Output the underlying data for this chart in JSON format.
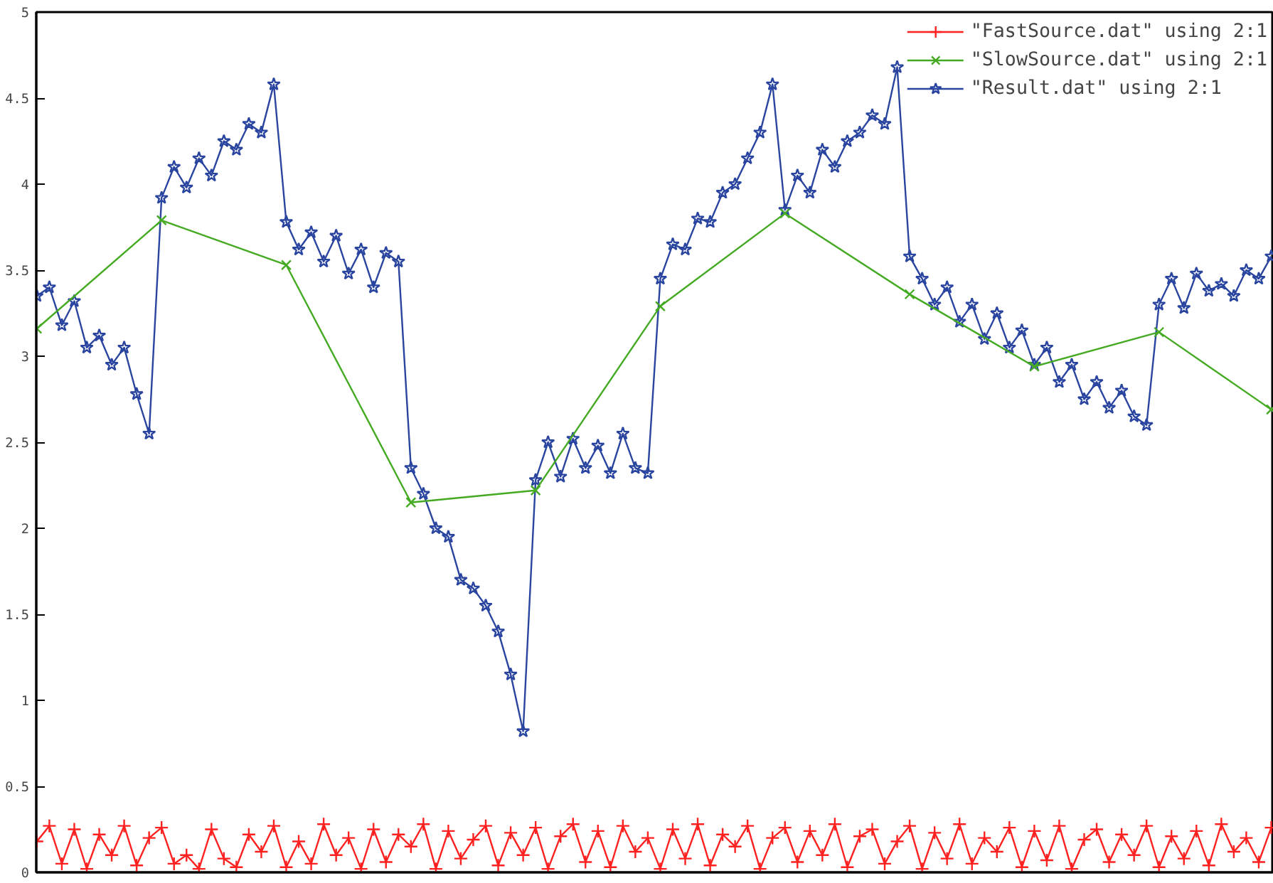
{
  "chart_data": {
    "type": "line",
    "ylim": [
      0,
      5
    ],
    "categories": [
      null,
      null,
      null,
      null,
      null,
      null,
      null,
      null,
      null,
      null,
      null,
      null,
      null,
      null,
      null,
      null,
      null,
      null,
      null,
      null,
      null,
      null,
      null,
      null,
      null,
      null,
      null,
      null,
      null,
      null,
      null,
      null,
      null,
      null,
      null,
      null,
      null,
      null,
      null,
      null,
      null,
      null,
      null,
      null,
      null,
      null,
      null,
      null,
      null,
      null,
      null,
      null,
      null,
      null,
      null,
      null,
      null,
      null,
      null,
      null,
      null,
      null,
      null,
      null,
      null,
      null,
      null,
      null,
      null,
      null,
      null,
      null,
      null,
      null,
      null,
      null,
      null,
      null,
      null,
      null,
      null,
      null,
      null,
      null,
      null,
      null,
      null,
      null,
      null,
      null,
      null,
      null,
      null,
      null,
      null,
      null,
      null,
      null,
      null,
      null
    ],
    "yticks": [
      0,
      0.5,
      1,
      1.5,
      2,
      2.5,
      3,
      3.5,
      4,
      4.5,
      5
    ],
    "grid": false,
    "legend": "top right",
    "line_style": "solid",
    "series": [
      {
        "name": "\"FastSource.dat\" using 2:1",
        "color": "#ff2020",
        "marker": "cross",
        "values": [
          0.18,
          0.27,
          0.05,
          0.25,
          0.02,
          0.22,
          0.1,
          0.27,
          0.04,
          0.2,
          0.26,
          0.05,
          0.1,
          0.02,
          0.25,
          0.08,
          0.03,
          0.22,
          0.12,
          0.27,
          0.03,
          0.18,
          0.05,
          0.28,
          0.1,
          0.2,
          0.02,
          0.25,
          0.06,
          0.22,
          0.15,
          0.28,
          0.02,
          0.24,
          0.08,
          0.19,
          0.27,
          0.04,
          0.23,
          0.1,
          0.26,
          0.02,
          0.21,
          0.28,
          0.06,
          0.24,
          0.03,
          0.27,
          0.12,
          0.2,
          0.02,
          0.25,
          0.08,
          0.28,
          0.04,
          0.22,
          0.15,
          0.27,
          0.02,
          0.2,
          0.26,
          0.06,
          0.24,
          0.1,
          0.28,
          0.03,
          0.21,
          0.25,
          0.05,
          0.18,
          0.27,
          0.02,
          0.23,
          0.08,
          0.28,
          0.05,
          0.2,
          0.12,
          0.26,
          0.03,
          0.24,
          0.07,
          0.27,
          0.02,
          0.19,
          0.25,
          0.06,
          0.22,
          0.1,
          0.27,
          0.03,
          0.21,
          0.08,
          0.24,
          0.04,
          0.28,
          0.12,
          0.2,
          0.06,
          0.26
        ]
      },
      {
        "name": "\"SlowSource.dat\" using 2:1",
        "color": "#44aa22",
        "marker": "x",
        "values": [
          3.16,
          null,
          null,
          null,
          null,
          null,
          null,
          null,
          null,
          null,
          3.79,
          null,
          null,
          null,
          null,
          null,
          null,
          null,
          null,
          null,
          3.53,
          null,
          null,
          null,
          null,
          null,
          null,
          null,
          null,
          null,
          2.15,
          null,
          null,
          null,
          null,
          null,
          null,
          null,
          null,
          null,
          2.22,
          null,
          null,
          null,
          null,
          null,
          null,
          null,
          null,
          null,
          3.29,
          null,
          null,
          null,
          null,
          null,
          null,
          null,
          null,
          null,
          3.83,
          null,
          null,
          null,
          null,
          null,
          null,
          null,
          null,
          null,
          3.36,
          null,
          null,
          null,
          null,
          null,
          null,
          null,
          null,
          null,
          2.94,
          null,
          null,
          null,
          null,
          null,
          null,
          null,
          null,
          null,
          3.14,
          null,
          null,
          null,
          null,
          null,
          null,
          null,
          null,
          2.69
        ]
      },
      {
        "name": "\"Result.dat\" using 2:1",
        "color": "#2a45a0",
        "marker": "star",
        "values": [
          3.35,
          3.4,
          3.18,
          3.32,
          3.05,
          3.12,
          2.95,
          3.05,
          2.78,
          2.55,
          3.92,
          4.1,
          3.98,
          4.15,
          4.05,
          4.25,
          4.2,
          4.35,
          4.3,
          4.58,
          3.78,
          3.62,
          3.72,
          3.55,
          3.7,
          3.48,
          3.62,
          3.4,
          3.6,
          3.55,
          2.35,
          2.2,
          2.0,
          1.95,
          1.7,
          1.65,
          1.55,
          1.4,
          1.15,
          0.82,
          2.28,
          2.5,
          2.3,
          2.52,
          2.35,
          2.48,
          2.32,
          2.55,
          2.35,
          2.32,
          3.45,
          3.65,
          3.62,
          3.8,
          3.78,
          3.95,
          4.0,
          4.15,
          4.3,
          4.58,
          3.85,
          4.05,
          3.95,
          4.2,
          4.1,
          4.25,
          4.3,
          4.4,
          4.35,
          4.68,
          3.58,
          3.45,
          3.3,
          3.4,
          3.2,
          3.3,
          3.1,
          3.25,
          3.05,
          3.15,
          2.95,
          3.05,
          2.85,
          2.95,
          2.75,
          2.85,
          2.7,
          2.8,
          2.65,
          2.6,
          3.3,
          3.45,
          3.28,
          3.48,
          3.38,
          3.42,
          3.35,
          3.5,
          3.45,
          3.58
        ]
      }
    ]
  }
}
